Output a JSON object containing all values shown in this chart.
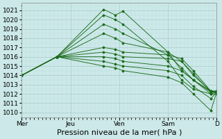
{
  "background_color": "#cce8e8",
  "grid_major_color": "#aacccc",
  "grid_minor_color": "#bbdddd",
  "line_color": "#1a6b1a",
  "marker_color": "#1a6b1a",
  "xlabel": "Pression niveau de la mer( hPa )",
  "ylim": [
    1009.5,
    1021.8
  ],
  "yticks": [
    1010,
    1011,
    1012,
    1013,
    1014,
    1015,
    1016,
    1017,
    1018,
    1019,
    1020,
    1021
  ],
  "xtick_labels": [
    "Mer",
    "Jeu",
    "Ven",
    "Sam",
    "D"
  ],
  "xtick_positions": [
    0,
    0.25,
    0.5,
    0.75,
    1.0
  ],
  "lines": [
    [
      1014.0,
      1016.0,
      1021.1,
      1020.5,
      1020.9,
      1016.5,
      1014.5,
      1013.5,
      1012.3,
      1012.2
    ],
    [
      1014.0,
      1016.0,
      1020.5,
      1020.0,
      1019.5,
      1015.5,
      1013.5,
      1012.5,
      1012.0,
      1012.2
    ],
    [
      1014.0,
      1016.0,
      1019.5,
      1019.0,
      1018.5,
      1016.2,
      1014.8,
      1013.5,
      1012.2,
      1012.2
    ],
    [
      1014.0,
      1016.0,
      1018.5,
      1018.0,
      1017.5,
      1016.5,
      1015.5,
      1014.0,
      1012.3,
      1012.3
    ],
    [
      1014.0,
      1016.0,
      1017.0,
      1016.8,
      1016.5,
      1016.2,
      1015.8,
      1014.5,
      1012.3,
      1012.3
    ],
    [
      1014.0,
      1016.0,
      1016.5,
      1016.3,
      1016.0,
      1015.8,
      1015.5,
      1014.2,
      1012.2,
      1012.2
    ],
    [
      1014.0,
      1016.0,
      1016.0,
      1015.8,
      1015.5,
      1015.0,
      1014.5,
      1013.5,
      1012.0,
      1012.0
    ],
    [
      1014.0,
      1016.0,
      1015.5,
      1015.2,
      1015.0,
      1014.5,
      1014.0,
      1012.8,
      1011.5,
      1012.2
    ],
    [
      1014.0,
      1016.0,
      1015.0,
      1014.8,
      1014.5,
      1013.8,
      1013.2,
      1012.0,
      1010.2,
      1012.2
    ]
  ],
  "x_positions": [
    0.0,
    0.18,
    0.42,
    0.48,
    0.52,
    0.75,
    0.82,
    0.88,
    0.97,
    1.0
  ],
  "tick_fontsize": 6.5,
  "xlabel_fontsize": 8
}
